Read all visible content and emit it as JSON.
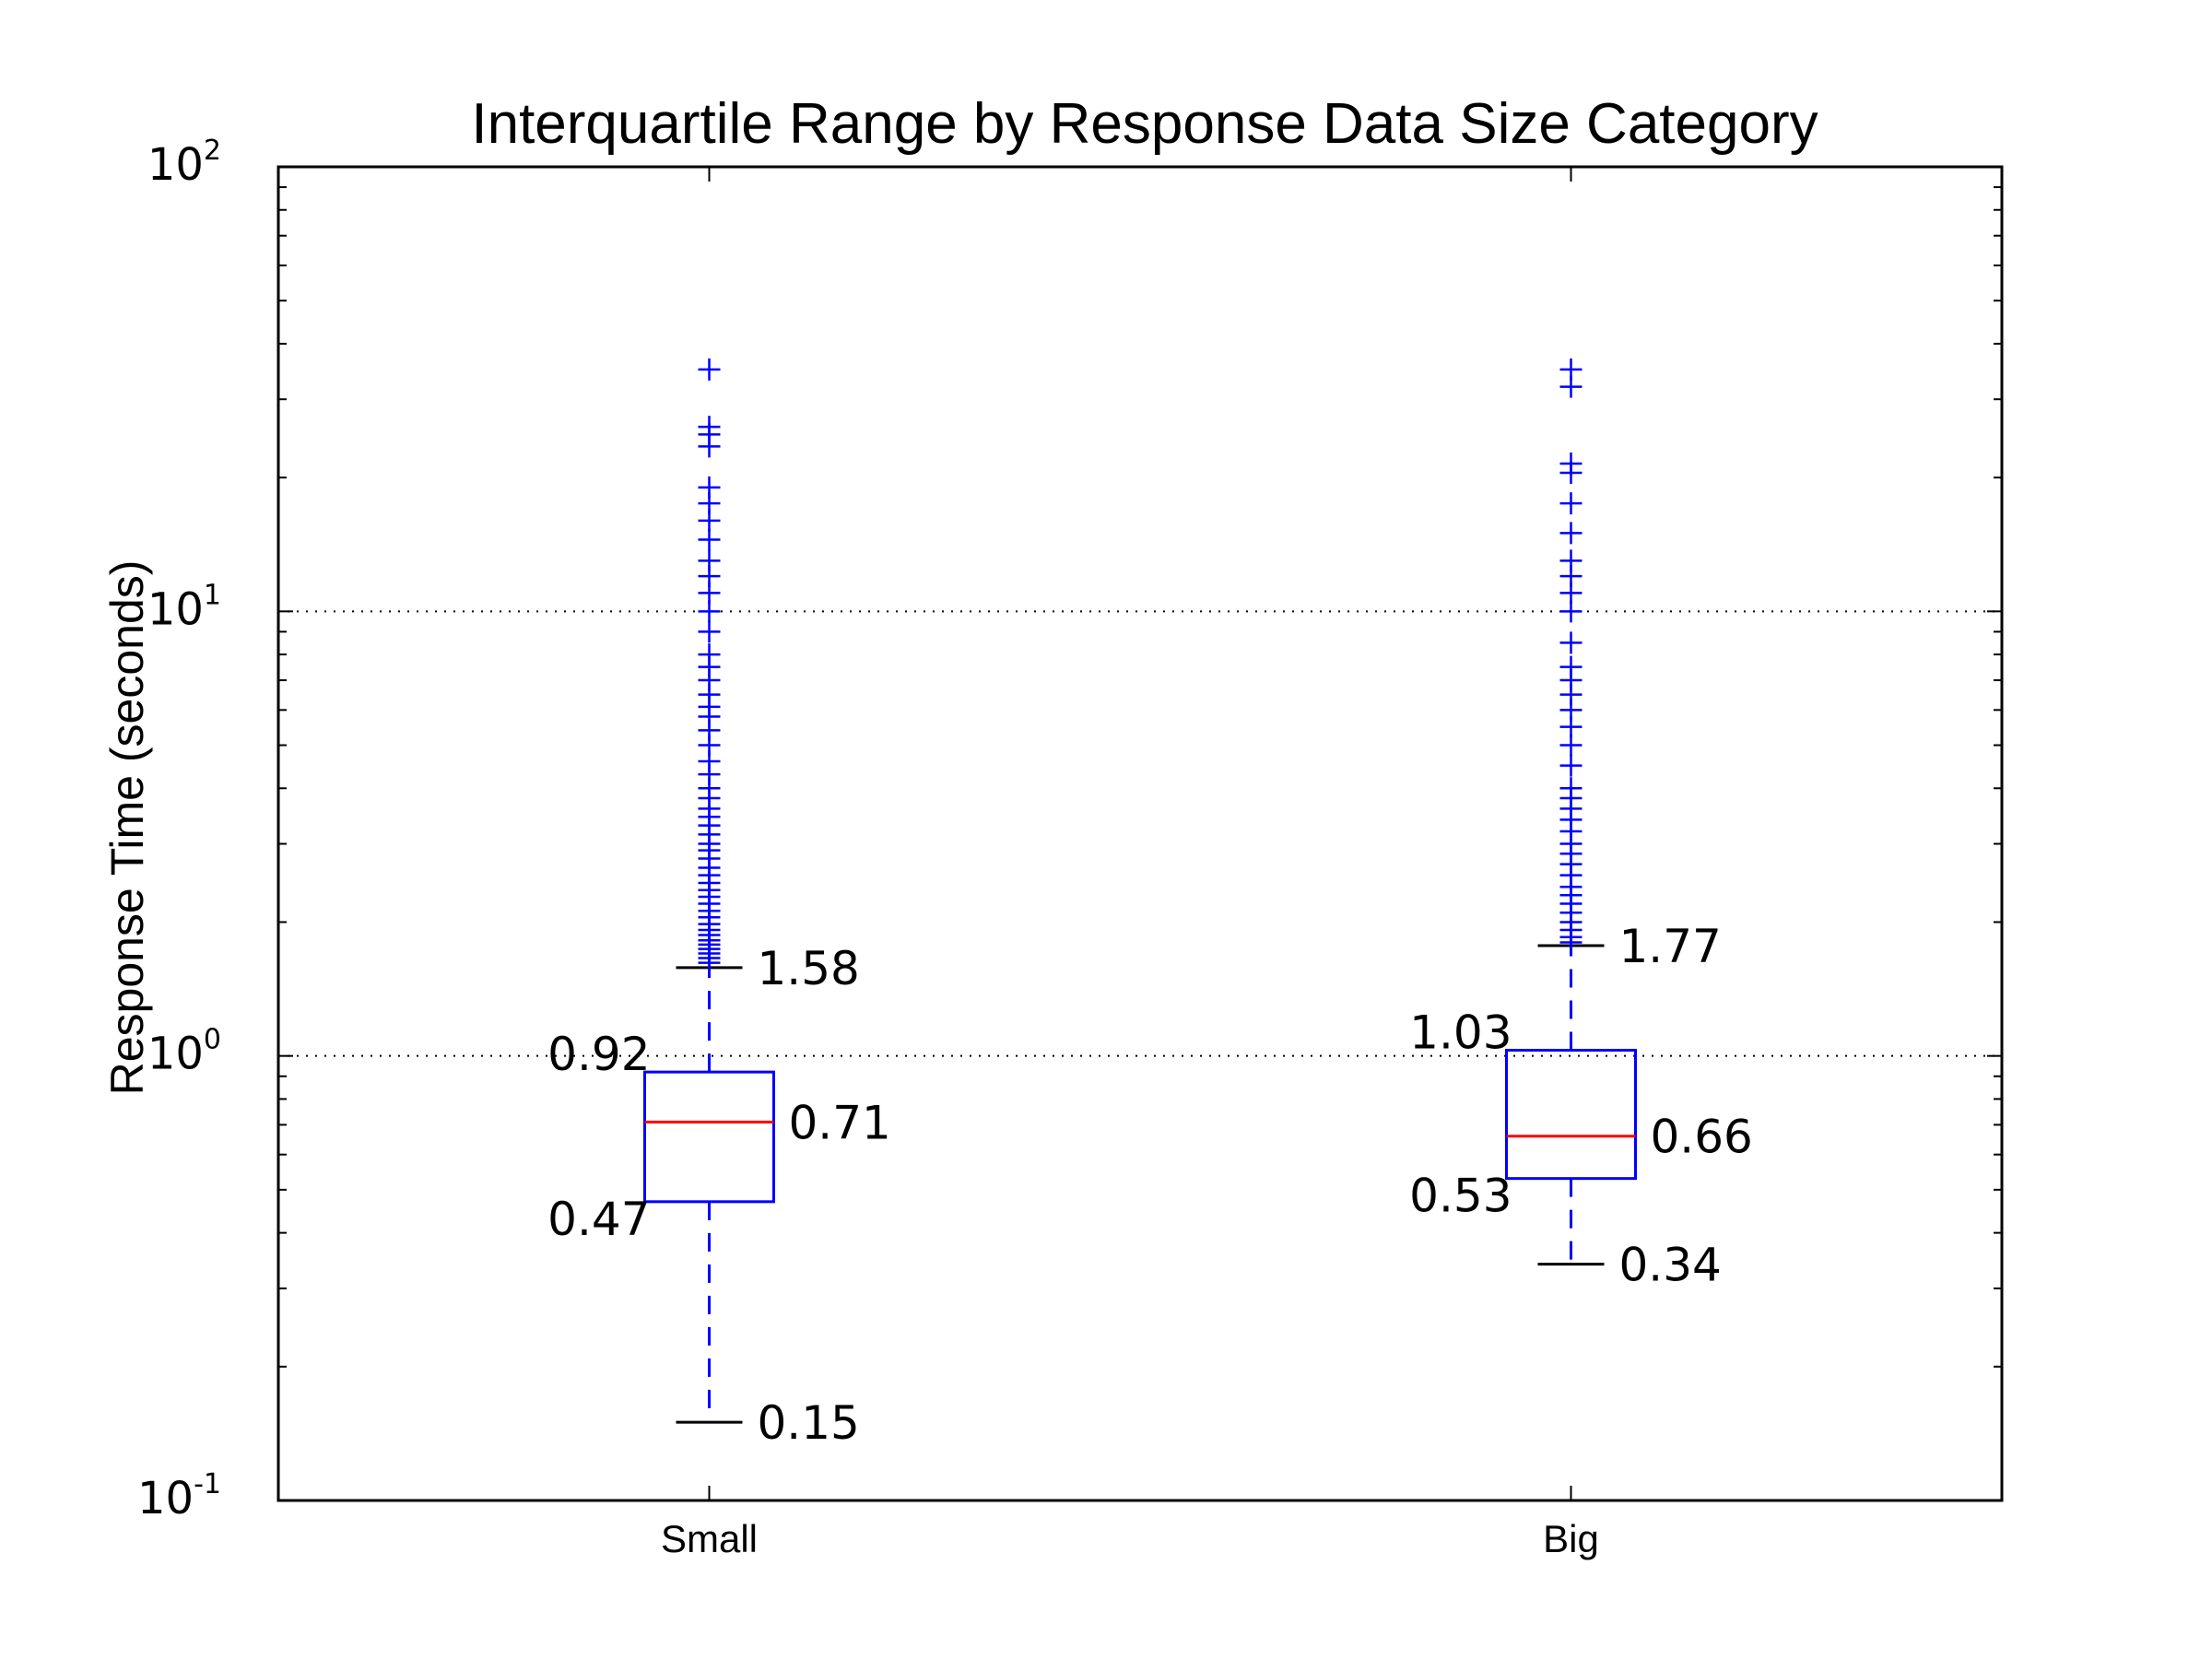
{
  "chart_data": {
    "type": "box",
    "title": "Interquartile Range by Response Data Size Category",
    "xlabel": "",
    "ylabel": "Response Time (seconds)",
    "y_scale": "log",
    "ylim": [
      0.1,
      100
    ],
    "y_ticks": [
      {
        "value": 0.1,
        "base": "10",
        "exp": "-1"
      },
      {
        "value": 1,
        "base": "10",
        "exp": "0"
      },
      {
        "value": 10,
        "base": "10",
        "exp": "1"
      },
      {
        "value": 100,
        "base": "10",
        "exp": "2"
      }
    ],
    "grid": "horizontal dotted at major ticks",
    "categories": [
      "Small",
      "Big"
    ],
    "boxes": [
      {
        "category": "Small",
        "whisker_low": 0.15,
        "q1": 0.47,
        "median": 0.71,
        "q3": 0.92,
        "whisker_high": 1.58,
        "labels": {
          "whisker_low": "0.15",
          "q1": "0.47",
          "median": "0.71",
          "q3": "0.92",
          "whisker_high": "1.58"
        },
        "outliers": [
          1.62,
          1.66,
          1.7,
          1.74,
          1.78,
          1.82,
          1.87,
          1.92,
          1.98,
          2.05,
          2.12,
          2.2,
          2.28,
          2.36,
          2.45,
          2.55,
          2.65,
          2.78,
          2.9,
          3.0,
          3.15,
          3.3,
          3.45,
          3.6,
          3.8,
          4.0,
          4.3,
          4.6,
          5.0,
          5.4,
          5.8,
          6.1,
          6.5,
          7.0,
          7.5,
          8.0,
          9.0,
          10.0,
          11.0,
          12.0,
          13.0,
          14.5,
          16.0,
          17.5,
          19.0,
          23.5,
          25.0,
          26.0,
          35.0
        ]
      },
      {
        "category": "Big",
        "whisker_low": 0.34,
        "q1": 0.53,
        "median": 0.66,
        "q3": 1.03,
        "whisker_high": 1.77,
        "labels": {
          "whisker_low": "0.34",
          "q1": "0.53",
          "median": "0.66",
          "q3": "1.03",
          "whisker_high": "1.77"
        },
        "outliers": [
          1.8,
          1.85,
          1.92,
          2.0,
          2.1,
          2.2,
          2.3,
          2.4,
          2.55,
          2.7,
          2.85,
          3.0,
          3.2,
          3.4,
          3.6,
          3.8,
          4.0,
          4.5,
          5.0,
          5.5,
          6.0,
          6.5,
          7.0,
          7.5,
          8.5,
          10.0,
          11.0,
          12.0,
          13.0,
          15.0,
          17.5,
          20.5,
          21.5,
          32.0,
          35.0
        ]
      }
    ],
    "colors": {
      "box": "#0000ff",
      "median": "#ff0000",
      "whisker_cap": "#000000",
      "outlier": "#0000ff",
      "grid": "#000000"
    }
  }
}
